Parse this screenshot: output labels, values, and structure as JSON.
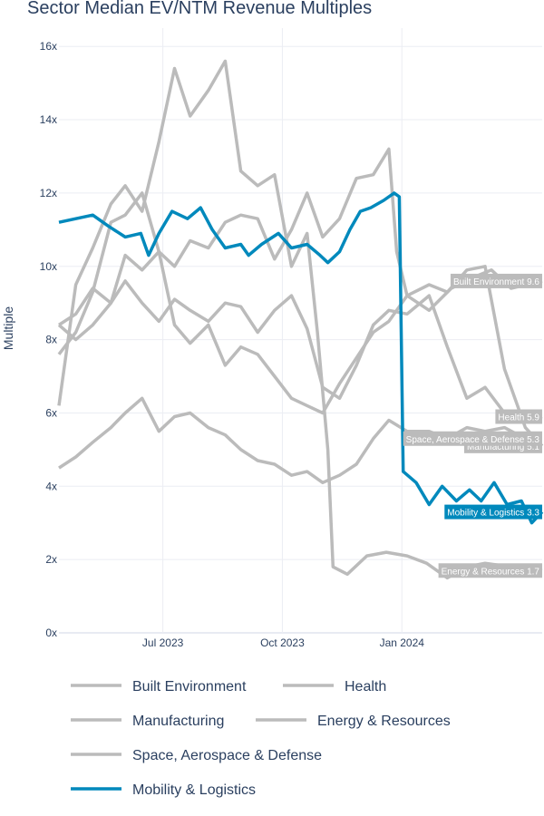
{
  "chart_data": {
    "type": "line",
    "title": "Sector Median EV/NTM Revenue Multiples",
    "ylabel": "Multiple",
    "xlabel": "",
    "ylim": [
      0,
      16.5
    ],
    "xlim": [
      "2023-04-12",
      "2024-04-18"
    ],
    "y_ticks": [
      0,
      2,
      4,
      6,
      8,
      10,
      12,
      14,
      16
    ],
    "y_tick_labels": [
      "0x",
      "2x",
      "4x",
      "6x",
      "8x",
      "10x",
      "12x",
      "14x",
      "16x"
    ],
    "x_ticks": [
      "2023-07-01",
      "2023-10-01",
      "2024-01-01"
    ],
    "x_tick_labels": [
      "Jul 2023",
      "Oct 2023",
      "Jan 2024"
    ],
    "grid": true,
    "legend_position": "bottom",
    "series": [
      {
        "name": "Built Environment",
        "color": "#bbbbbb",
        "end_label": "Built Environment 9.6",
        "points": [
          [
            "2023-04-12",
            7.6
          ],
          [
            "2023-04-25",
            8.2
          ],
          [
            "2023-05-08",
            9.3
          ],
          [
            "2023-05-22",
            11.2
          ],
          [
            "2023-06-02",
            11.4
          ],
          [
            "2023-06-15",
            12.0
          ],
          [
            "2023-06-28",
            10.4
          ],
          [
            "2023-07-10",
            10.0
          ],
          [
            "2023-07-22",
            10.7
          ],
          [
            "2023-08-05",
            10.5
          ],
          [
            "2023-08-18",
            11.2
          ],
          [
            "2023-08-30",
            11.4
          ],
          [
            "2023-09-12",
            11.3
          ],
          [
            "2023-09-25",
            10.2
          ],
          [
            "2023-10-08",
            11.0
          ],
          [
            "2023-10-20",
            12.0
          ],
          [
            "2023-11-01",
            10.8
          ],
          [
            "2023-11-14",
            11.3
          ],
          [
            "2023-11-27",
            12.4
          ],
          [
            "2023-12-10",
            12.5
          ],
          [
            "2023-12-22",
            13.2
          ],
          [
            "2023-12-28",
            10.4
          ],
          [
            "2024-01-05",
            9.2
          ],
          [
            "2024-01-22",
            8.8
          ],
          [
            "2024-02-08",
            9.4
          ],
          [
            "2024-02-25",
            9.7
          ],
          [
            "2024-03-10",
            9.9
          ],
          [
            "2024-03-25",
            9.4
          ],
          [
            "2024-04-18",
            9.6
          ]
        ]
      },
      {
        "name": "Health",
        "color": "#bbbbbb",
        "end_label": "Health 5.9",
        "points": [
          [
            "2023-04-12",
            8.4
          ],
          [
            "2023-04-25",
            8.0
          ],
          [
            "2023-05-08",
            8.4
          ],
          [
            "2023-05-22",
            9.0
          ],
          [
            "2023-06-02",
            9.6
          ],
          [
            "2023-06-15",
            9.0
          ],
          [
            "2023-06-28",
            8.5
          ],
          [
            "2023-07-10",
            9.1
          ],
          [
            "2023-07-22",
            8.8
          ],
          [
            "2023-08-05",
            8.5
          ],
          [
            "2023-08-18",
            9.0
          ],
          [
            "2023-08-30",
            8.9
          ],
          [
            "2023-09-12",
            8.2
          ],
          [
            "2023-09-25",
            8.8
          ],
          [
            "2023-10-08",
            9.2
          ],
          [
            "2023-10-20",
            8.3
          ],
          [
            "2023-11-01",
            6.7
          ],
          [
            "2023-11-14",
            6.4
          ],
          [
            "2023-11-27",
            7.3
          ],
          [
            "2023-12-10",
            8.4
          ],
          [
            "2023-12-22",
            8.8
          ],
          [
            "2024-01-05",
            8.7
          ],
          [
            "2024-01-22",
            9.2
          ],
          [
            "2024-02-05",
            7.8
          ],
          [
            "2024-02-20",
            6.4
          ],
          [
            "2024-03-05",
            6.7
          ],
          [
            "2024-03-20",
            6.0
          ],
          [
            "2024-04-05",
            5.8
          ],
          [
            "2024-04-18",
            5.9
          ]
        ]
      },
      {
        "name": "Manufacturing",
        "color": "#bbbbbb",
        "end_label": "Manufacturing 5.1",
        "points": [
          [
            "2023-04-12",
            8.4
          ],
          [
            "2023-04-25",
            8.7
          ],
          [
            "2023-05-08",
            9.4
          ],
          [
            "2023-05-22",
            9.0
          ],
          [
            "2023-06-02",
            10.3
          ],
          [
            "2023-06-15",
            9.9
          ],
          [
            "2023-06-28",
            10.4
          ],
          [
            "2023-07-10",
            8.4
          ],
          [
            "2023-07-22",
            7.9
          ],
          [
            "2023-08-05",
            8.4
          ],
          [
            "2023-08-18",
            7.3
          ],
          [
            "2023-08-30",
            7.8
          ],
          [
            "2023-09-12",
            7.6
          ],
          [
            "2023-09-25",
            7.0
          ],
          [
            "2023-10-08",
            6.4
          ],
          [
            "2023-10-20",
            6.2
          ],
          [
            "2023-11-01",
            6.0
          ],
          [
            "2023-11-14",
            6.8
          ],
          [
            "2023-11-27",
            7.5
          ],
          [
            "2023-12-10",
            8.2
          ],
          [
            "2023-12-22",
            8.5
          ],
          [
            "2024-01-05",
            9.2
          ],
          [
            "2024-01-22",
            9.5
          ],
          [
            "2024-02-05",
            9.3
          ],
          [
            "2024-02-20",
            9.9
          ],
          [
            "2024-03-05",
            10.0
          ],
          [
            "2024-03-20",
            7.2
          ],
          [
            "2024-04-05",
            5.6
          ],
          [
            "2024-04-18",
            5.1
          ]
        ]
      },
      {
        "name": "Energy & Resources",
        "color": "#bbbbbb",
        "end_label": "Energy & Resources 1.7",
        "points": [
          [
            "2023-04-12",
            6.2
          ],
          [
            "2023-04-25",
            9.5
          ],
          [
            "2023-05-08",
            10.5
          ],
          [
            "2023-05-22",
            11.7
          ],
          [
            "2023-06-02",
            12.2
          ],
          [
            "2023-06-15",
            11.5
          ],
          [
            "2023-06-28",
            13.4
          ],
          [
            "2023-07-10",
            15.4
          ],
          [
            "2023-07-22",
            14.1
          ],
          [
            "2023-08-05",
            14.8
          ],
          [
            "2023-08-18",
            15.6
          ],
          [
            "2023-08-30",
            12.6
          ],
          [
            "2023-09-12",
            12.2
          ],
          [
            "2023-09-25",
            12.5
          ],
          [
            "2023-10-08",
            10.0
          ],
          [
            "2023-10-20",
            10.9
          ],
          [
            "2023-10-28",
            8.2
          ],
          [
            "2023-11-05",
            5.0
          ],
          [
            "2023-11-09",
            1.8
          ],
          [
            "2023-11-20",
            1.6
          ],
          [
            "2023-12-05",
            2.1
          ],
          [
            "2023-12-20",
            2.2
          ],
          [
            "2024-01-05",
            2.1
          ],
          [
            "2024-01-20",
            1.9
          ],
          [
            "2024-02-05",
            1.5
          ],
          [
            "2024-02-20",
            1.8
          ],
          [
            "2024-03-05",
            1.9
          ],
          [
            "2024-03-25",
            1.8
          ],
          [
            "2024-04-18",
            1.7
          ]
        ]
      },
      {
        "name": "Space, Aerospace & Defense",
        "color": "#bbbbbb",
        "end_label": "Space, Aerospace & Defense 5.3",
        "points": [
          [
            "2023-04-12",
            4.5
          ],
          [
            "2023-04-25",
            4.8
          ],
          [
            "2023-05-08",
            5.2
          ],
          [
            "2023-05-22",
            5.6
          ],
          [
            "2023-06-02",
            6.0
          ],
          [
            "2023-06-15",
            6.4
          ],
          [
            "2023-06-28",
            5.5
          ],
          [
            "2023-07-10",
            5.9
          ],
          [
            "2023-07-22",
            6.0
          ],
          [
            "2023-08-05",
            5.6
          ],
          [
            "2023-08-18",
            5.4
          ],
          [
            "2023-08-30",
            5.0
          ],
          [
            "2023-09-12",
            4.7
          ],
          [
            "2023-09-25",
            4.6
          ],
          [
            "2023-10-08",
            4.3
          ],
          [
            "2023-10-20",
            4.4
          ],
          [
            "2023-11-01",
            4.1
          ],
          [
            "2023-11-14",
            4.3
          ],
          [
            "2023-11-27",
            4.6
          ],
          [
            "2023-12-10",
            5.3
          ],
          [
            "2023-12-22",
            5.8
          ],
          [
            "2024-01-05",
            5.5
          ],
          [
            "2024-01-22",
            5.5
          ],
          [
            "2024-02-05",
            5.3
          ],
          [
            "2024-02-20",
            5.6
          ],
          [
            "2024-03-05",
            5.5
          ],
          [
            "2024-03-20",
            5.6
          ],
          [
            "2024-04-05",
            5.3
          ],
          [
            "2024-04-18",
            5.3
          ]
        ]
      },
      {
        "name": "Mobility & Logistics",
        "color": "#0089bc",
        "end_label": "Mobility & Logistics 3.3",
        "points": [
          [
            "2023-04-12",
            11.2
          ],
          [
            "2023-04-25",
            11.3
          ],
          [
            "2023-05-08",
            11.4
          ],
          [
            "2023-05-20",
            11.1
          ],
          [
            "2023-06-02",
            10.8
          ],
          [
            "2023-06-14",
            10.9
          ],
          [
            "2023-06-20",
            10.3
          ],
          [
            "2023-06-28",
            10.9
          ],
          [
            "2023-07-08",
            11.5
          ],
          [
            "2023-07-20",
            11.3
          ],
          [
            "2023-07-30",
            11.6
          ],
          [
            "2023-08-08",
            11.0
          ],
          [
            "2023-08-18",
            10.5
          ],
          [
            "2023-08-30",
            10.6
          ],
          [
            "2023-09-05",
            10.3
          ],
          [
            "2023-09-15",
            10.6
          ],
          [
            "2023-09-28",
            10.9
          ],
          [
            "2023-10-08",
            10.5
          ],
          [
            "2023-10-20",
            10.6
          ],
          [
            "2023-10-30",
            10.3
          ],
          [
            "2023-11-05",
            10.1
          ],
          [
            "2023-11-14",
            10.4
          ],
          [
            "2023-11-22",
            11.0
          ],
          [
            "2023-11-30",
            11.5
          ],
          [
            "2023-12-08",
            11.6
          ],
          [
            "2023-12-18",
            11.8
          ],
          [
            "2023-12-26",
            12.0
          ],
          [
            "2023-12-30",
            11.9
          ],
          [
            "2024-01-02",
            4.4
          ],
          [
            "2024-01-12",
            4.1
          ],
          [
            "2024-01-22",
            3.5
          ],
          [
            "2024-02-01",
            4.0
          ],
          [
            "2024-02-12",
            3.6
          ],
          [
            "2024-02-22",
            3.9
          ],
          [
            "2024-03-02",
            3.6
          ],
          [
            "2024-03-12",
            4.1
          ],
          [
            "2024-03-22",
            3.5
          ],
          [
            "2024-04-02",
            3.6
          ],
          [
            "2024-04-10",
            3.0
          ],
          [
            "2024-04-18",
            3.3
          ]
        ]
      }
    ]
  }
}
